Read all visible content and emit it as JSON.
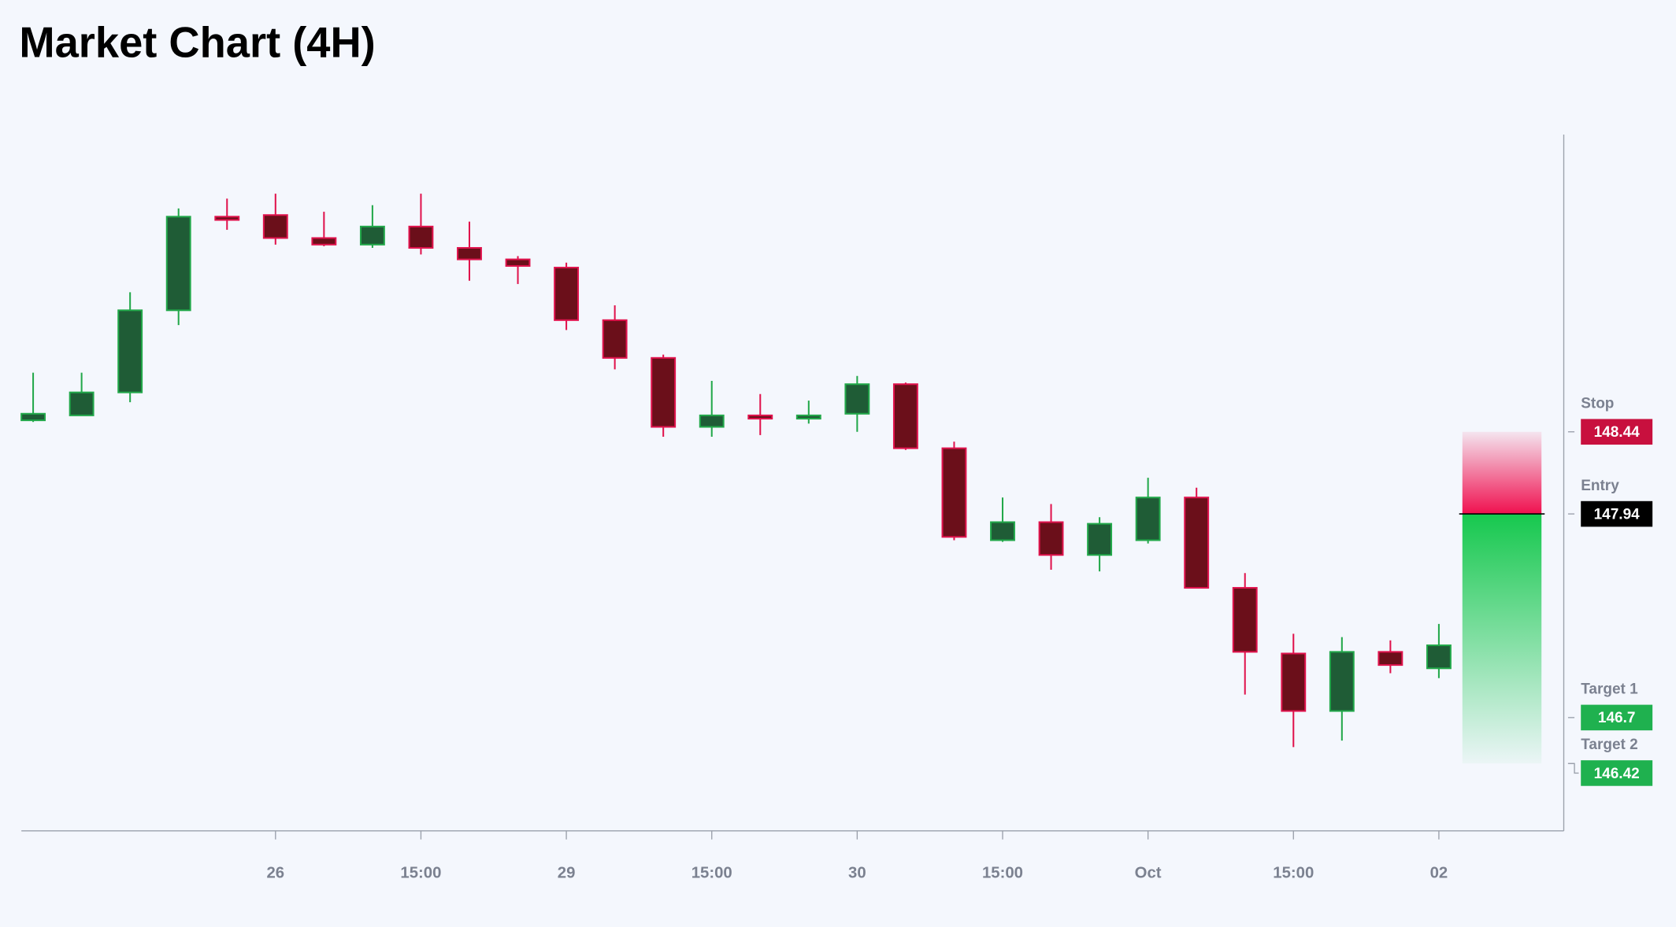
{
  "chart_data": {
    "type": "candlestick",
    "title": "Market Chart (4H)",
    "categories": [
      null,
      null,
      null,
      null,
      null,
      "26",
      null,
      null,
      "15:00",
      null,
      null,
      "29",
      null,
      null,
      "15:00",
      null,
      null,
      "30",
      null,
      null,
      "15:00",
      null,
      null,
      "Oct",
      null,
      null,
      "15:00",
      null,
      null,
      "02"
    ],
    "open": [
      148.51,
      148.54,
      148.68,
      149.18,
      149.75,
      149.76,
      149.62,
      149.58,
      149.69,
      149.56,
      149.49,
      149.44,
      149.12,
      148.89,
      148.47,
      148.54,
      148.52,
      148.55,
      148.73,
      148.34,
      147.78,
      147.89,
      147.69,
      147.78,
      148.04,
      147.49,
      147.09,
      146.74,
      147.1,
      147.0
    ],
    "high": [
      148.8,
      148.8,
      149.29,
      149.8,
      149.86,
      149.89,
      149.78,
      149.82,
      149.89,
      149.72,
      149.51,
      149.47,
      149.21,
      148.91,
      148.75,
      148.67,
      148.63,
      148.78,
      148.74,
      148.38,
      148.04,
      148.0,
      147.92,
      148.16,
      148.1,
      147.58,
      147.21,
      147.19,
      147.17,
      147.27
    ],
    "low": [
      148.5,
      148.54,
      148.62,
      149.09,
      149.67,
      149.58,
      149.57,
      149.56,
      149.52,
      149.36,
      149.34,
      149.06,
      148.82,
      148.41,
      148.41,
      148.42,
      148.49,
      148.44,
      148.33,
      147.78,
      147.77,
      147.6,
      147.59,
      147.76,
      147.49,
      146.84,
      146.52,
      146.56,
      146.97,
      146.94
    ],
    "close": [
      148.55,
      148.68,
      149.18,
      149.75,
      149.73,
      149.62,
      149.58,
      149.69,
      149.56,
      149.49,
      149.45,
      149.12,
      148.89,
      148.47,
      148.54,
      148.52,
      148.54,
      148.73,
      148.34,
      147.8,
      147.89,
      147.69,
      147.88,
      148.04,
      147.49,
      147.1,
      146.74,
      147.1,
      147.02,
      147.14
    ],
    "up_color": "#22a84a",
    "down_color": "#e0134d",
    "ylim": [
      146.01,
      150.25
    ],
    "levels": [
      {
        "label": "Stop",
        "value": 148.44,
        "color": "#c8103e"
      },
      {
        "label": "Entry",
        "value": 147.94,
        "color": "#000000"
      },
      {
        "label": "Target 1",
        "value": 146.7,
        "color": "#1fb14f"
      },
      {
        "label": "Target 2",
        "value": 146.42,
        "color": "#1fb14f"
      }
    ]
  }
}
